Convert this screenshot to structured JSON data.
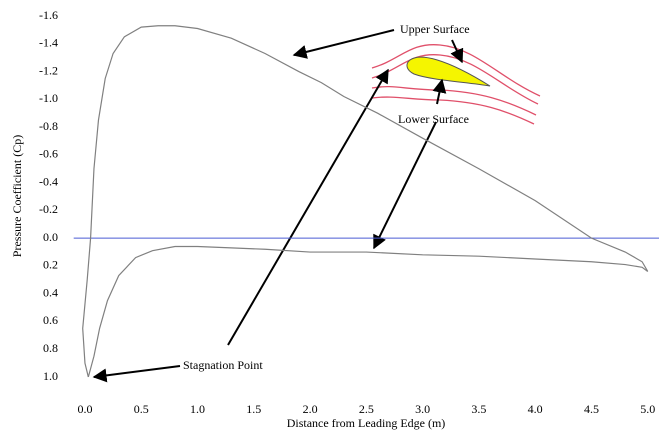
{
  "chart_data": {
    "type": "line",
    "x_label": "Distance from Leading Edge (m)",
    "y_label": "Pressure Coefficient (Cp)",
    "y_inverted": true,
    "xlim": [
      -0.1,
      5.1
    ],
    "ylim": [
      -1.6,
      1.0
    ],
    "xticks": [
      {
        "value": 0,
        "label": "0.0"
      },
      0.5,
      {
        "value": 1,
        "label": "1.0"
      },
      1.5,
      {
        "value": 2,
        "label": "2.0"
      },
      2.5,
      {
        "value": 3,
        "label": "3.0"
      },
      3.5,
      {
        "value": 4,
        "label": "4.0"
      },
      4.5,
      {
        "value": 5,
        "label": "5.0"
      }
    ],
    "yticks": [
      -1.6,
      -1.4,
      -1.2,
      {
        "value": -1,
        "label": "-1.0"
      },
      -0.8,
      -0.6,
      -0.4,
      -0.2,
      {
        "value": 0,
        "label": "0.0"
      },
      0.2,
      0.4,
      0.6,
      0.8,
      {
        "value": 1,
        "label": "1.0"
      }
    ],
    "zero_line_color": "#4a5bd4",
    "series": [
      {
        "color": "#808080",
        "x": [
          0.03,
          0.0,
          -0.02,
          0.02,
          0.05,
          0.08,
          0.12,
          0.18,
          0.25,
          0.35,
          0.5,
          0.65,
          0.8,
          1.0,
          1.3,
          1.6,
          1.9,
          2.1,
          2.3,
          2.6,
          3.0,
          3.5,
          4.0,
          4.5,
          4.8,
          4.95,
          5.0
        ],
        "values": [
          1.0,
          0.9,
          0.65,
          0.3,
          0.0,
          -0.5,
          -0.85,
          -1.15,
          -1.33,
          -1.45,
          -1.52,
          -1.53,
          -1.53,
          -1.51,
          -1.44,
          -1.33,
          -1.2,
          -1.12,
          -1.02,
          -0.9,
          -0.72,
          -0.5,
          -0.27,
          0.0,
          0.1,
          0.17,
          0.24
        ]
      },
      {
        "color": "#808080",
        "x": [
          0.03,
          0.08,
          0.13,
          0.2,
          0.3,
          0.45,
          0.6,
          0.8,
          1.0,
          1.3,
          1.6,
          2.0,
          2.5,
          3.0,
          3.5,
          4.0,
          4.5,
          4.8,
          4.95,
          5.0
        ],
        "values": [
          1.0,
          0.85,
          0.65,
          0.45,
          0.27,
          0.14,
          0.09,
          0.06,
          0.06,
          0.07,
          0.08,
          0.1,
          0.1,
          0.12,
          0.13,
          0.15,
          0.17,
          0.19,
          0.21,
          0.24
        ]
      }
    ],
    "annotations": [
      {
        "text": "Upper Surface"
      },
      {
        "text": "Lower Surface"
      },
      {
        "text": "Stagnation Point"
      }
    ]
  }
}
